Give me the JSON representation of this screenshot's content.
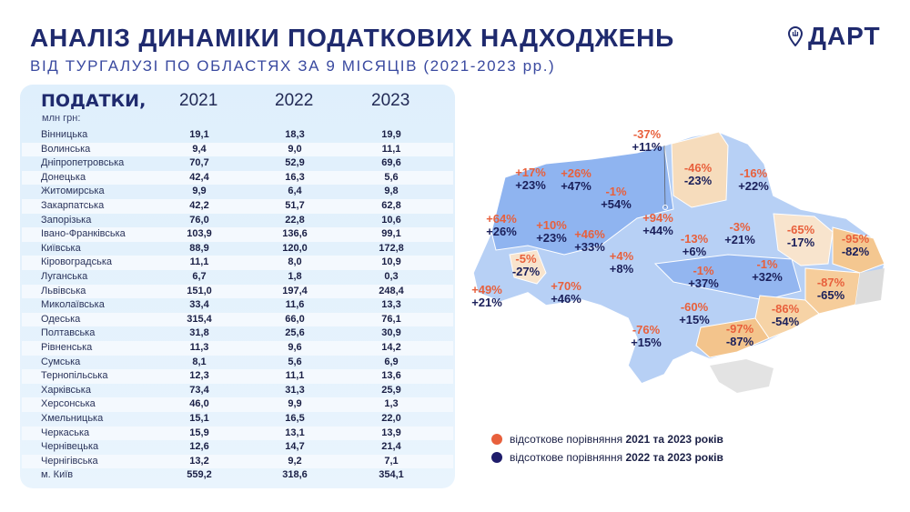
{
  "header": {
    "title": "АНАЛІЗ ДИНАМІКИ ПОДАТКОВИХ НАДХОДЖЕНЬ",
    "subtitle": "ВІД ТУРГАЛУЗІ ПО ОБЛАСТЯХ ЗА 9 МІСЯЦІВ (2021-2023 рр.)",
    "logo": "ДАРТ"
  },
  "colors": {
    "navy": "#1f2a6e",
    "orange": "#e8603c",
    "decline": "#f6d3a6",
    "growth": "#8fb4f0"
  },
  "chart_data": {
    "type": "table",
    "title": "ПОДАТКИ,",
    "unit": "млн грн:",
    "columns": [
      "2021",
      "2022",
      "2023"
    ],
    "rows": [
      {
        "region": "Вінницька",
        "values": [
          "19,1",
          "18,3",
          "19,9"
        ]
      },
      {
        "region": "Волинська",
        "values": [
          "9,4",
          "9,0",
          "11,1"
        ]
      },
      {
        "region": "Дніпропетровська",
        "values": [
          "70,7",
          "52,9",
          "69,6"
        ]
      },
      {
        "region": "Донецька",
        "values": [
          "42,4",
          "16,3",
          "5,6"
        ]
      },
      {
        "region": "Житомирська",
        "values": [
          "9,9",
          "6,4",
          "9,8"
        ]
      },
      {
        "region": "Закарпатська",
        "values": [
          "42,2",
          "51,7",
          "62,8"
        ]
      },
      {
        "region": "Запорізька",
        "values": [
          "76,0",
          "22,8",
          "10,6"
        ]
      },
      {
        "region": "Івано-Франківська",
        "values": [
          "103,9",
          "136,6",
          "99,1"
        ]
      },
      {
        "region": "Київська",
        "values": [
          "88,9",
          "120,0",
          "172,8"
        ]
      },
      {
        "region": "Кіровоградська",
        "values": [
          "11,1",
          "8,0",
          "10,9"
        ]
      },
      {
        "region": "Луганська",
        "values": [
          "6,7",
          "1,8",
          "0,3"
        ]
      },
      {
        "region": "Львівська",
        "values": [
          "151,0",
          "197,4",
          "248,4"
        ]
      },
      {
        "region": "Миколаївська",
        "values": [
          "33,4",
          "11,6",
          "13,3"
        ]
      },
      {
        "region": "Одеська",
        "values": [
          "315,4",
          "66,0",
          "76,1"
        ]
      },
      {
        "region": "Полтавська",
        "values": [
          "31,8",
          "25,6",
          "30,9"
        ]
      },
      {
        "region": "Рівненська",
        "values": [
          "11,3",
          "9,6",
          "14,2"
        ]
      },
      {
        "region": "Сумська",
        "values": [
          "8,1",
          "5,6",
          "6,9"
        ]
      },
      {
        "region": "Тернопільська",
        "values": [
          "12,3",
          "11,1",
          "13,6"
        ]
      },
      {
        "region": "Харківська",
        "values": [
          "73,4",
          "31,3",
          "25,9"
        ]
      },
      {
        "region": "Херсонська",
        "values": [
          "46,0",
          "9,9",
          "1,3"
        ]
      },
      {
        "region": "Хмельницька",
        "values": [
          "15,1",
          "16,5",
          "22,0"
        ]
      },
      {
        "region": "Черкаська",
        "values": [
          "15,9",
          "13,1",
          "13,9"
        ]
      },
      {
        "region": "Чернівецька",
        "values": [
          "12,6",
          "14,7",
          "21,4"
        ]
      },
      {
        "region": "Чернігівська",
        "values": [
          "13,2",
          "9,2",
          "7,1"
        ]
      },
      {
        "region": "м. Київ",
        "values": [
          "559,2",
          "318,6",
          "354,1"
        ]
      }
    ]
  },
  "map": {
    "regions": [
      {
        "id": "volyn",
        "a": "+17%",
        "b": "+23%"
      },
      {
        "id": "rivne",
        "a": "+26%",
        "b": "+47%"
      },
      {
        "id": "zhytomyr",
        "a": "-1%",
        "b": "+54%"
      },
      {
        "id": "kyiv-oblast",
        "a": "+94%",
        "b": "+44%"
      },
      {
        "id": "kyiv-city",
        "a": "-37%",
        "b": "+11%"
      },
      {
        "id": "chernihiv",
        "a": "-46%",
        "b": "-23%"
      },
      {
        "id": "sumy",
        "a": "-16%",
        "b": "+22%"
      },
      {
        "id": "lviv",
        "a": "+64%",
        "b": "+26%"
      },
      {
        "id": "ternopil",
        "a": "+10%",
        "b": "+23%"
      },
      {
        "id": "khmelnytskyi",
        "a": "+46%",
        "b": "+33%"
      },
      {
        "id": "vinnytsia",
        "a": "+4%",
        "b": "+8%"
      },
      {
        "id": "cherkasy",
        "a": "-13%",
        "b": "+6%"
      },
      {
        "id": "poltava",
        "a": "-3%",
        "b": "+21%"
      },
      {
        "id": "kharkiv",
        "a": "-65%",
        "b": "-17%"
      },
      {
        "id": "luhansk",
        "a": "-95%",
        "b": "-82%"
      },
      {
        "id": "ivano-frankivsk",
        "a": "-5%",
        "b": "-27%"
      },
      {
        "id": "zakarpattia",
        "a": "+49%",
        "b": "+21%"
      },
      {
        "id": "chernivtsi",
        "a": "+70%",
        "b": "+46%"
      },
      {
        "id": "kirovohrad",
        "a": "-1%",
        "b": "+37%"
      },
      {
        "id": "dnipro",
        "a": "-1%",
        "b": "+32%"
      },
      {
        "id": "donetsk",
        "a": "-87%",
        "b": "-65%"
      },
      {
        "id": "mykolaiv",
        "a": "-60%",
        "b": "+15%"
      },
      {
        "id": "zaporizhzhia",
        "a": "-86%",
        "b": "-54%"
      },
      {
        "id": "kherson",
        "a": "-97%",
        "b": "-87%"
      },
      {
        "id": "odesa",
        "a": "-76%",
        "b": "+15%"
      }
    ]
  },
  "legend": [
    {
      "text": "відсоткове порівняння ",
      "bold": "2021 та 2023 років",
      "color": "#e8603c"
    },
    {
      "text": "відсоткове порівняння ",
      "bold": "2022 та 2023 років",
      "color": "#1f1c6b"
    }
  ]
}
